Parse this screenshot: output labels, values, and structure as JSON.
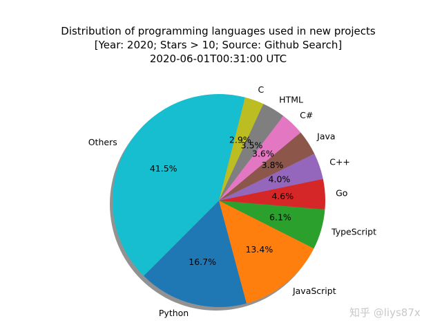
{
  "title": {
    "line1": "Distribution of programming languages used in new projects",
    "line2": "[Year: 2020; Stars > 10; Source: Github Search]",
    "line3": "2020-06-01T00:31:00 UTC"
  },
  "watermark": "知乎 @liys87x",
  "chart_data": {
    "type": "pie",
    "title": "Distribution of programming languages used in new projects [Year: 2020; Stars > 10; Source: Github Search] 2020-06-01T00:31:00 UTC",
    "categories": [
      "Python",
      "JavaScript",
      "TypeScript",
      "Go",
      "C++",
      "Java",
      "C#",
      "HTML",
      "C",
      "Others"
    ],
    "values": [
      16.7,
      13.4,
      6.1,
      4.6,
      4.0,
      3.8,
      3.6,
      3.5,
      2.9,
      41.5
    ],
    "value_labels": [
      "16.7%",
      "13.4%",
      "6.1%",
      "4.6%",
      "4.0%",
      "3.8%",
      "3.6%",
      "3.5%",
      "2.9%",
      "41.5%"
    ],
    "colors": [
      "#1f77b4",
      "#ff7f0e",
      "#2ca02c",
      "#d62728",
      "#9467bd",
      "#8c564b",
      "#e377c2",
      "#7f7f7f",
      "#bcbd22",
      "#17becf"
    ],
    "start_angle_deg": 225,
    "direction": "counterclockwise",
    "shadow": true,
    "legend": "none"
  }
}
